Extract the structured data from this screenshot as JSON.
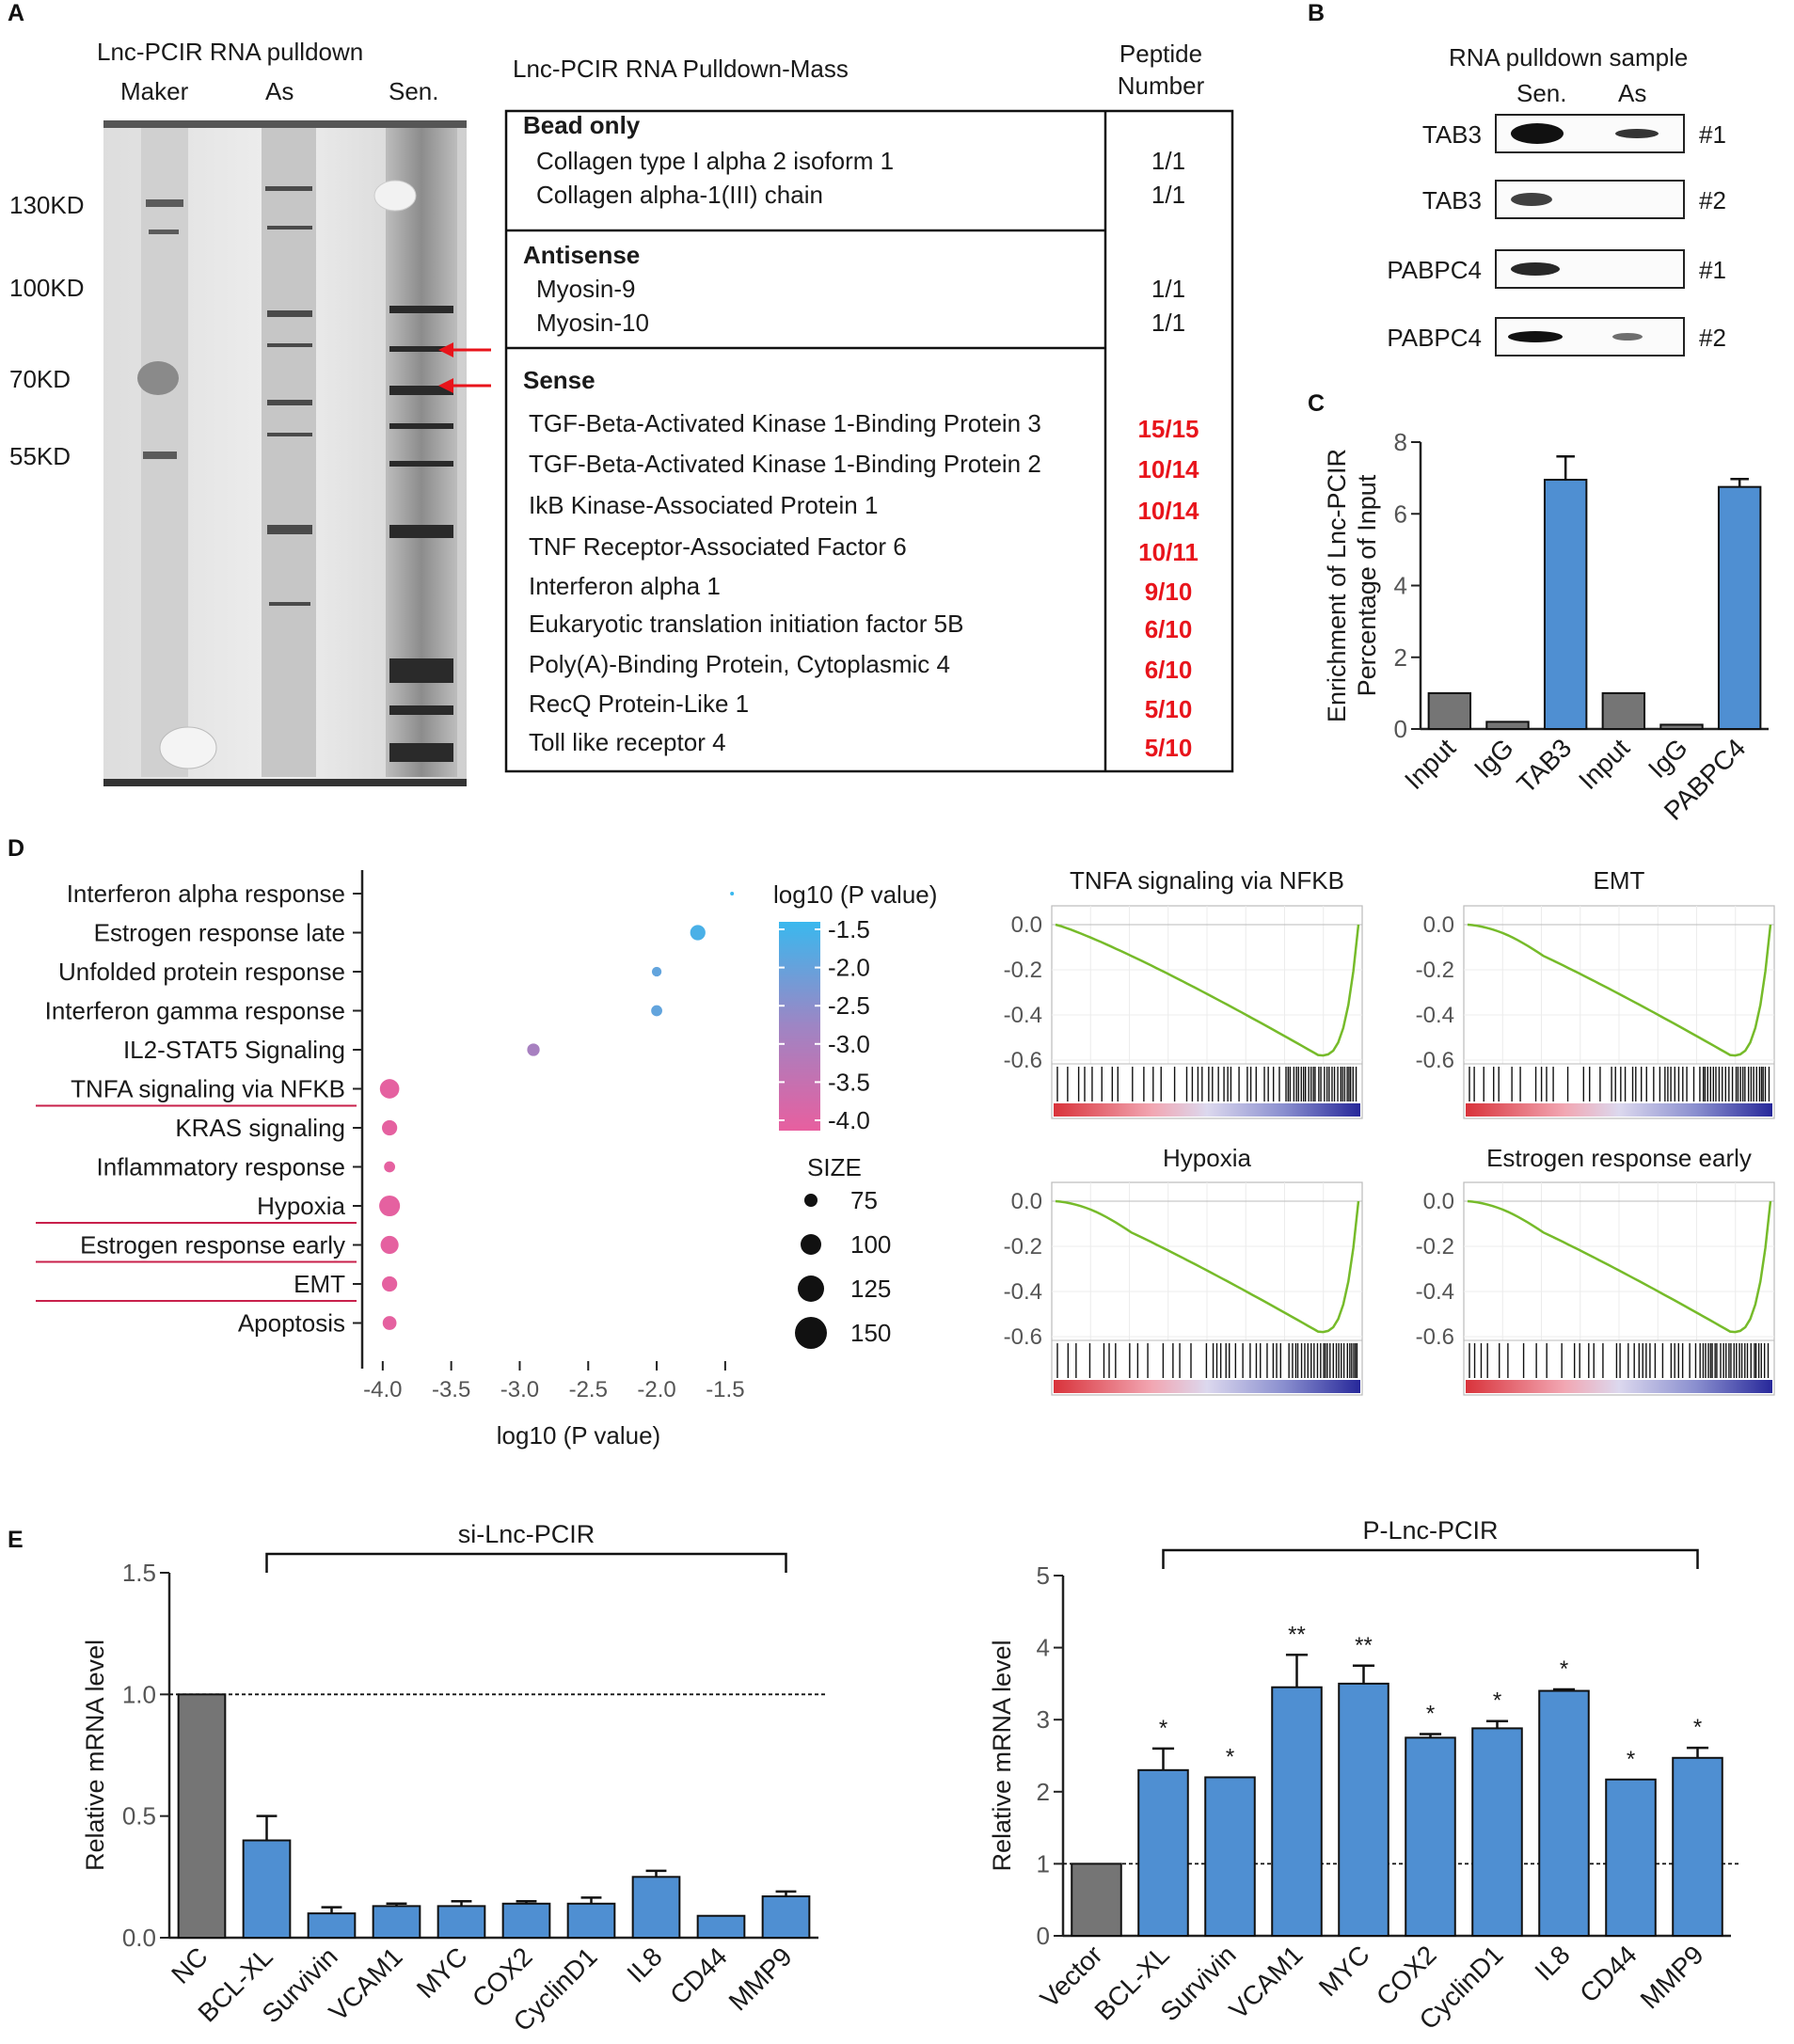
{
  "panels": {
    "A": {
      "label": "A",
      "gel_title": "Lnc-PCIR RNA pulldown",
      "lanes": [
        "Maker",
        "As",
        "Sen."
      ],
      "markers": [
        "130KD",
        "100KD",
        "70KD",
        "55KD"
      ],
      "table_title": "Lnc-PCIR RNA Pulldown-Mass",
      "peptide_header": [
        "Peptide",
        "Number"
      ],
      "groups": [
        {
          "name": "Bead only",
          "rows": [
            {
              "protein": "Collagen type I alpha 2 isoform 1",
              "number": "1/1",
              "highlight": false
            },
            {
              "protein": "Collagen alpha-1(III) chain",
              "number": "1/1",
              "highlight": false
            }
          ]
        },
        {
          "name": "Antisense",
          "rows": [
            {
              "protein": "Myosin-9",
              "number": "1/1",
              "highlight": false
            },
            {
              "protein": "Myosin-10",
              "number": "1/1",
              "highlight": false
            }
          ]
        },
        {
          "name": "Sense",
          "rows": [
            {
              "protein": "TGF-Beta-Activated Kinase 1-Binding Protein 3",
              "number": "15/15",
              "highlight": true
            },
            {
              "protein": "TGF-Beta-Activated Kinase 1-Binding Protein 2",
              "number": "10/14",
              "highlight": true
            },
            {
              "protein": "IkB Kinase-Associated Protein 1",
              "number": "10/14",
              "highlight": true
            },
            {
              "protein": "TNF Receptor-Associated Factor 6",
              "number": "10/11",
              "highlight": true
            },
            {
              "protein": "Interferon alpha 1",
              "number": "9/10",
              "highlight": true
            },
            {
              "protein": "Eukaryotic translation initiation factor 5B",
              "number": "6/10",
              "highlight": true
            },
            {
              "protein": "Poly(A)-Binding Protein, Cytoplasmic 4",
              "number": "6/10",
              "highlight": true
            },
            {
              "protein": "RecQ Protein-Like 1",
              "number": "5/10",
              "highlight": true
            },
            {
              "protein": "Toll like receptor 4",
              "number": "5/10",
              "highlight": true
            }
          ]
        }
      ]
    },
    "B": {
      "label": "B",
      "title": "RNA pulldown sample",
      "columns": [
        "Sen.",
        "As"
      ],
      "rows": [
        {
          "protein": "TAB3",
          "rep": "#1"
        },
        {
          "protein": "TAB3",
          "rep": "#2"
        },
        {
          "protein": "PABPC4",
          "rep": "#1"
        },
        {
          "protein": "PABPC4",
          "rep": "#2"
        }
      ]
    },
    "C": {
      "label": "C"
    },
    "D": {
      "label": "D",
      "gsea": [
        {
          "title": "TNFA signaling via NFKB",
          "yticks": [
            "0.0",
            "-0.2",
            "-0.4",
            "-0.6"
          ]
        },
        {
          "title": "EMT",
          "yticks": [
            "0.0",
            "-0.2",
            "-0.4",
            "-0.6"
          ]
        },
        {
          "title": "Hypoxia",
          "yticks": [
            "0.0",
            "-0.2",
            "-0.4",
            "-0.6"
          ]
        },
        {
          "title": "Estrogen response early",
          "yticks": [
            "0.0",
            "-0.2",
            "-0.4",
            "-0.6"
          ]
        }
      ]
    },
    "E": {
      "label": "E"
    }
  },
  "colors": {
    "grey_bar": "#757575",
    "blue_bar": "#4f8fd2",
    "red_text": "#e8141b",
    "gsea_line": "#76bb2a",
    "underline": "#c8204b"
  },
  "chart_data": [
    {
      "id": "C",
      "type": "bar",
      "title": "",
      "ylabel": "Enrichment of Lnc-PCIR Percentage of Input",
      "ylabel_lines": [
        "Enrichment of Lnc-PCIR",
        "Percentage of Input"
      ],
      "xlabel": "",
      "categories": [
        "Input",
        "IgG",
        "TAB3",
        "Input",
        "IgG",
        "PABPC4"
      ],
      "values": [
        1.0,
        0.2,
        6.95,
        1.0,
        0.12,
        6.75
      ],
      "errors": [
        0,
        0,
        0.65,
        0,
        0,
        0.22
      ],
      "bar_colors": [
        "grey",
        "grey",
        "blue",
        "grey",
        "grey",
        "blue"
      ],
      "ylim": [
        0,
        8
      ],
      "yticks": [
        "0",
        "2",
        "4",
        "6",
        "8"
      ]
    },
    {
      "id": "D-dot",
      "type": "scatter",
      "xlabel": "log10 (P value)",
      "ylabel": "",
      "categories": [
        "Interferon alpha response",
        "Estrogen response late",
        "Unfolded protein response",
        "Interferon gamma response",
        "IL2-STAT5 Signaling",
        "TNFA signaling via NFKB",
        "KRAS signaling",
        "Inflammatory response",
        "Hypoxia",
        "Estrogen response early",
        "EMT",
        "Apoptosis"
      ],
      "underlined": [
        false,
        false,
        false,
        false,
        false,
        true,
        false,
        false,
        true,
        true,
        true,
        false
      ],
      "x": [
        -1.45,
        -1.7,
        -2.0,
        -2.0,
        -2.9,
        -3.95,
        -3.95,
        -3.95,
        -3.95,
        -3.95,
        -3.95,
        -3.95
      ],
      "size": [
        60,
        110,
        90,
        95,
        100,
        125,
        110,
        95,
        130,
        120,
        110,
        105
      ],
      "xlim": [
        -4.15,
        -1.3
      ],
      "xticks": [
        "-4.0",
        "-3.5",
        "-3.0",
        "-2.5",
        "-2.0",
        "-1.5"
      ],
      "color_legend": {
        "title": "log10 (P value)",
        "ticks": [
          "-1.5",
          "-2.0",
          "-2.5",
          "-3.0",
          "-3.5",
          "-4.0"
        ],
        "range": [
          -4.0,
          -1.5
        ]
      },
      "size_legend": {
        "title": "SIZE",
        "values": [
          "75",
          "100",
          "125",
          "150"
        ]
      }
    },
    {
      "id": "E-left",
      "type": "bar",
      "ylabel": "Relative mRNA level",
      "bracket_label": "si-Lnc-PCIR",
      "categories": [
        "NC",
        "BCL-XL",
        "Survivin",
        "VCAM1",
        "MYC",
        "COX2",
        "CyclinD1",
        "IL8",
        "CD44",
        "MMP9"
      ],
      "values": [
        1.0,
        0.4,
        0.1,
        0.13,
        0.13,
        0.14,
        0.14,
        0.25,
        0.09,
        0.17
      ],
      "errors": [
        0,
        0.1,
        0.025,
        0.01,
        0.02,
        0.01,
        0.025,
        0.025,
        0,
        0.02
      ],
      "bar_colors": [
        "grey",
        "blue",
        "blue",
        "blue",
        "blue",
        "blue",
        "blue",
        "blue",
        "blue",
        "blue"
      ],
      "ylim": [
        0,
        1.5
      ],
      "yticks": [
        "0.0",
        "0.5",
        "1.0",
        "1.5"
      ],
      "reference_line": 1.0
    },
    {
      "id": "E-right",
      "type": "bar",
      "ylabel": "Relative mRNA level",
      "bracket_label": "P-Lnc-PCIR",
      "categories": [
        "Vector",
        "BCL-XL",
        "Survivin",
        "VCAM1",
        "MYC",
        "COX2",
        "CyclinD1",
        "IL8",
        "CD44",
        "MMP9"
      ],
      "values": [
        1.0,
        2.3,
        2.2,
        3.45,
        3.5,
        2.75,
        2.88,
        3.4,
        2.17,
        2.47
      ],
      "errors": [
        0,
        0.3,
        0,
        0.45,
        0.25,
        0.05,
        0.1,
        0.02,
        0,
        0.14
      ],
      "significance": [
        "",
        "*",
        "*",
        "**",
        "**",
        "*",
        "*",
        "*",
        "*",
        "*"
      ],
      "bar_colors": [
        "grey",
        "blue",
        "blue",
        "blue",
        "blue",
        "blue",
        "blue",
        "blue",
        "blue",
        "blue"
      ],
      "ylim": [
        0,
        5
      ],
      "yticks": [
        "0",
        "1",
        "2",
        "3",
        "4",
        "5"
      ],
      "reference_line": 1.0
    }
  ]
}
